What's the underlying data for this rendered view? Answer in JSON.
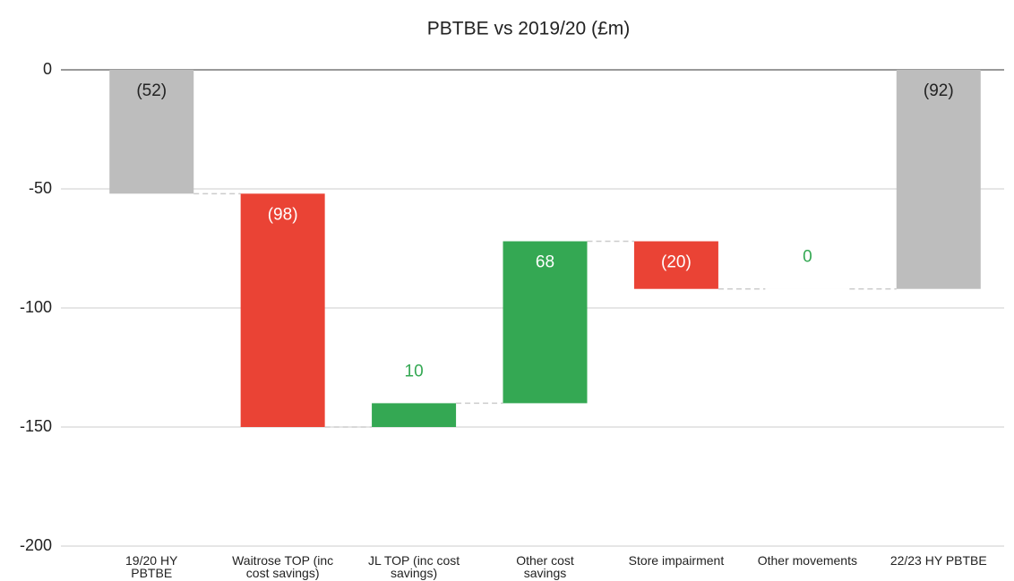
{
  "chart_data": {
    "type": "waterfall",
    "title": "PBTBE vs 2019/20 (£m)",
    "categories": [
      [
        "19/20 HY",
        "PBTBE"
      ],
      [
        "Waitrose TOP (inc",
        "cost savings)"
      ],
      [
        "JL TOP (inc cost",
        "savings)"
      ],
      [
        "Other cost",
        "savings"
      ],
      [
        "Store impairment"
      ],
      [
        "Other movements"
      ],
      [
        "22/23 HY PBTBE"
      ]
    ],
    "values": [
      -52,
      -98,
      10,
      68,
      -20,
      0,
      -92
    ],
    "value_labels": [
      "(52)",
      "(98)",
      "10",
      "68",
      "(20)",
      "0",
      "(92)"
    ],
    "is_total": [
      true,
      false,
      false,
      false,
      false,
      false,
      true
    ],
    "colors": [
      "#bdbdbd",
      "#ea4335",
      "#34a853",
      "#34a853",
      "#ea4335",
      "#34a853",
      "#bdbdbd"
    ],
    "ylim": [
      -200,
      0
    ],
    "yticks": [
      0,
      -50,
      -100,
      -150,
      -200
    ],
    "grid": true
  }
}
